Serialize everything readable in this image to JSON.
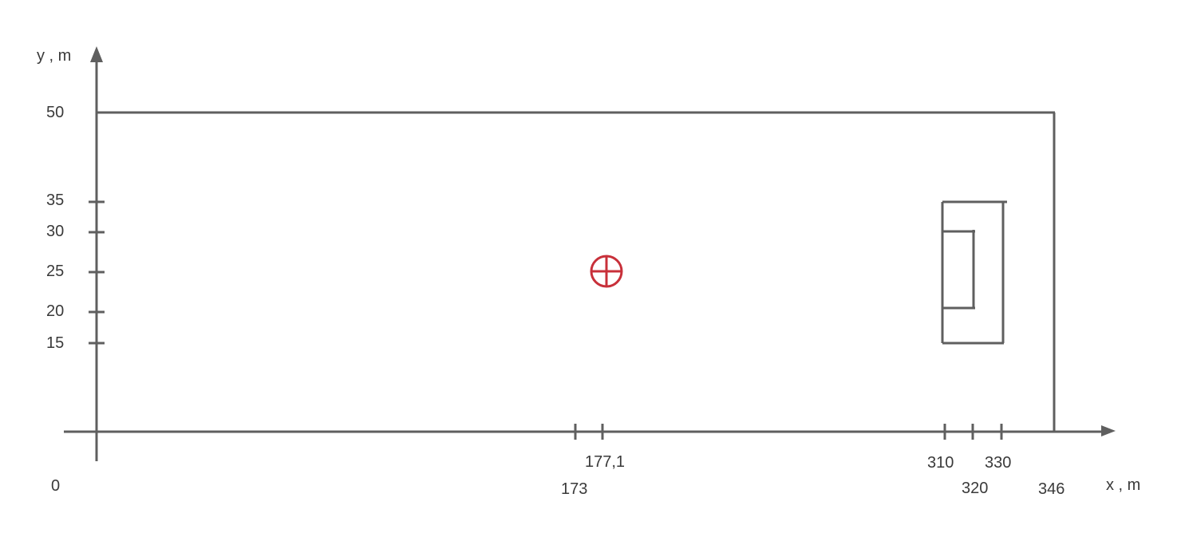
{
  "diagram": {
    "y_axis_label": "y , m",
    "x_axis_label": "x , m",
    "origin_label": "0",
    "y_ticks": [
      "50",
      "35",
      "30",
      "25",
      "20",
      "15"
    ],
    "x_ticks": [
      "173",
      "177,1",
      "310",
      "320",
      "330",
      "346"
    ],
    "line_color": "#5f5f5f",
    "marker_color": "#c8303a",
    "marker_icon": "crosshair-circle-icon"
  }
}
